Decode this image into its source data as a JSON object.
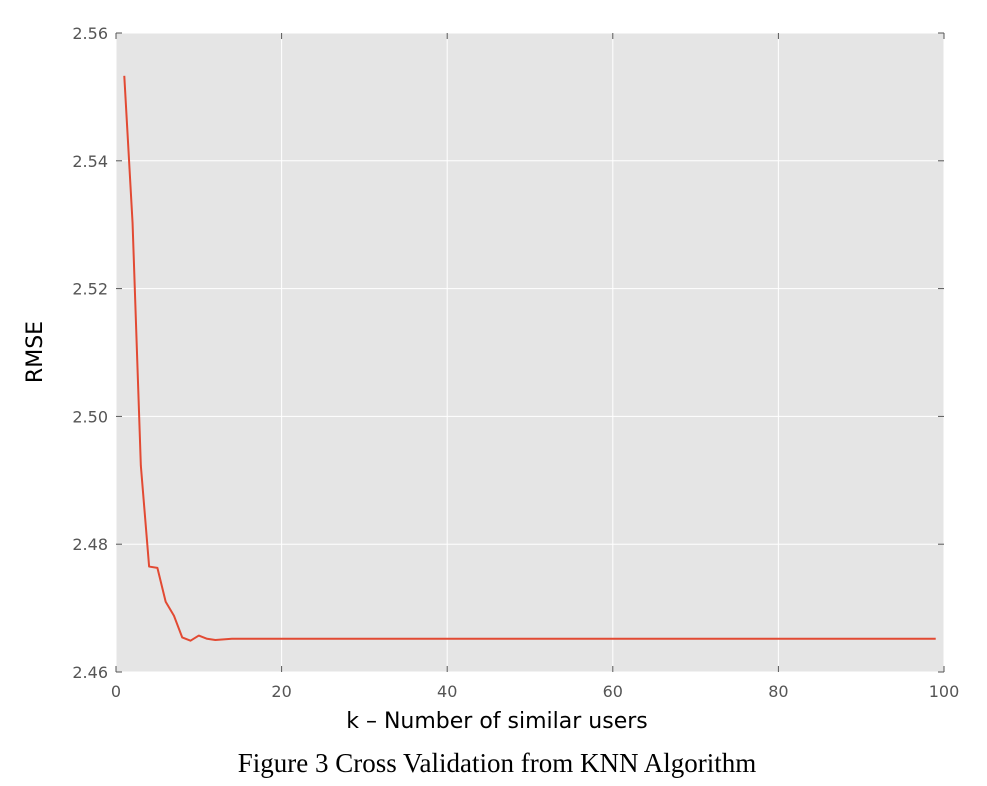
{
  "chart_data": {
    "type": "line",
    "caption": "Figure 3 Cross Validation from KNN Algorithm",
    "xlabel": "k – Number of similar users",
    "ylabel": "RMSE",
    "xlim": [
      0,
      100
    ],
    "ylim": [
      2.46,
      2.56
    ],
    "xticks": [
      0,
      20,
      40,
      60,
      80,
      100
    ],
    "xtick_labels": [
      "0",
      "20",
      "40",
      "60",
      "80",
      "100"
    ],
    "yticks": [
      2.46,
      2.48,
      2.5,
      2.52,
      2.54,
      2.56
    ],
    "ytick_labels": [
      "2.46",
      "2.48",
      "2.50",
      "2.52",
      "2.54",
      "2.56"
    ],
    "grid": true,
    "colors": {
      "background": "#e5e5e5",
      "grid": "#ffffff",
      "line": "#e24a33",
      "tick": "#555555"
    },
    "series": [
      {
        "x": [
          1,
          2,
          3,
          4,
          5,
          6,
          7,
          8,
          9,
          10,
          11,
          12,
          13,
          14,
          15,
          20,
          30,
          40,
          50,
          60,
          70,
          80,
          90,
          99
        ],
        "y": [
          2.5533,
          2.5303,
          2.4923,
          2.4765,
          2.4763,
          2.471,
          2.4688,
          2.4654,
          2.4649,
          2.4657,
          2.4652,
          2.465,
          2.4651,
          2.4652,
          2.4652,
          2.4652,
          2.4652,
          2.4652,
          2.4652,
          2.4652,
          2.4652,
          2.4652,
          2.4652,
          2.4652
        ]
      }
    ]
  }
}
